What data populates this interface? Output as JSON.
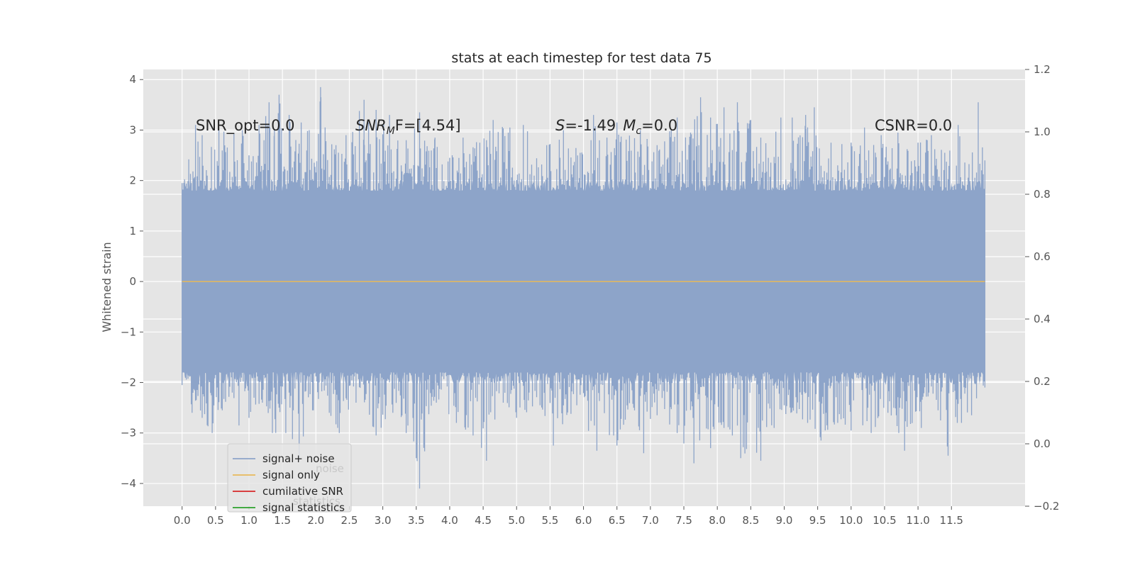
{
  "chart_data": {
    "type": "line",
    "title": "stats at each timestep for test data 75",
    "ylabel": "Whitened strain",
    "xlabel": "",
    "xlim": [
      -0.58,
      12.6
    ],
    "ylim": [
      -4.45,
      4.2
    ],
    "y2lim": [
      -0.2,
      1.2
    ],
    "grid": true,
    "legend_position": "lower-left",
    "x_ticks": [
      0.0,
      0.5,
      1.0,
      1.5,
      2.0,
      2.5,
      3.0,
      3.5,
      4.0,
      4.5,
      5.0,
      5.5,
      6.0,
      6.5,
      7.0,
      7.5,
      8.0,
      8.5,
      9.0,
      9.5,
      10.0,
      10.5,
      11.0,
      11.5
    ],
    "x_tick_labels": [
      "0.0",
      "0.5",
      "1.0",
      "1.5",
      "2.0",
      "2.5",
      "3.0",
      "3.5",
      "4.0",
      "4.5",
      "5.0",
      "5.5",
      "6.0",
      "6.5",
      "7.0",
      "7.5",
      "8.0",
      "8.5",
      "9.0",
      "9.5",
      "10.0",
      "10.5",
      "11.0",
      "11.5"
    ],
    "y_ticks": [
      -4,
      -3,
      -2,
      -1,
      0,
      1,
      2,
      3,
      4
    ],
    "y_tick_labels": [
      "−4",
      "−3",
      "−2",
      "−1",
      "0",
      "1",
      "2",
      "3",
      "4"
    ],
    "y2_ticks": [
      -0.2,
      0.0,
      0.2,
      0.4,
      0.6,
      0.8,
      1.0,
      1.2
    ],
    "y2_tick_labels": [
      "−0.2",
      "0.0",
      "0.2",
      "0.4",
      "0.6",
      "0.8",
      "1.0",
      "1.2"
    ],
    "series": [
      {
        "name": "signal+ noise",
        "color": "#8da4c9",
        "x_range": [
          0.0,
          12.0
        ],
        "envelope_max": [
          [
            0.0,
            1.95
          ],
          [
            0.2,
            3.1
          ],
          [
            0.3,
            2.9
          ],
          [
            0.55,
            3.0
          ],
          [
            0.9,
            3.0
          ],
          [
            1.0,
            2.5
          ],
          [
            1.15,
            3.1
          ],
          [
            1.3,
            3.55
          ],
          [
            1.38,
            3.0
          ],
          [
            1.45,
            3.7
          ],
          [
            1.6,
            3.3
          ],
          [
            1.78,
            3.15
          ],
          [
            1.9,
            3.0
          ],
          [
            2.07,
            3.85
          ],
          [
            2.3,
            2.7
          ],
          [
            2.45,
            2.9
          ],
          [
            2.72,
            3.6
          ],
          [
            2.9,
            3.4
          ],
          [
            3.1,
            3.3
          ],
          [
            3.35,
            2.8
          ],
          [
            3.55,
            3.35
          ],
          [
            3.78,
            2.85
          ],
          [
            4.0,
            2.45
          ],
          [
            4.2,
            2.85
          ],
          [
            4.45,
            2.75
          ],
          [
            4.65,
            3.2
          ],
          [
            4.9,
            3.05
          ],
          [
            5.1,
            3.1
          ],
          [
            5.45,
            2.7
          ],
          [
            5.7,
            3.0
          ],
          [
            5.95,
            2.55
          ],
          [
            6.15,
            3.3
          ],
          [
            6.35,
            2.85
          ],
          [
            6.5,
            3.15
          ],
          [
            6.85,
            3.0
          ],
          [
            7.1,
            2.7
          ],
          [
            7.4,
            3.25
          ],
          [
            7.6,
            2.95
          ],
          [
            7.75,
            3.65
          ],
          [
            7.9,
            3.25
          ],
          [
            8.1,
            3.45
          ],
          [
            8.3,
            3.55
          ],
          [
            8.5,
            3.2
          ],
          [
            8.65,
            2.85
          ],
          [
            8.95,
            3.25
          ],
          [
            9.12,
            3.25
          ],
          [
            9.32,
            3.3
          ],
          [
            9.45,
            3.45
          ],
          [
            9.7,
            2.75
          ],
          [
            10.0,
            2.75
          ],
          [
            10.2,
            3.05
          ],
          [
            10.45,
            2.9
          ],
          [
            10.7,
            2.95
          ],
          [
            11.0,
            2.75
          ],
          [
            11.2,
            2.9
          ],
          [
            11.4,
            2.55
          ],
          [
            11.6,
            3.1
          ],
          [
            11.9,
            3.55
          ],
          [
            12.0,
            2.4
          ]
        ],
        "envelope_min": [
          [
            0.0,
            -2.05
          ],
          [
            0.15,
            -2.6
          ],
          [
            0.3,
            -2.7
          ],
          [
            0.45,
            -3.0
          ],
          [
            0.6,
            -2.55
          ],
          [
            0.75,
            -2.2
          ],
          [
            0.85,
            -2.85
          ],
          [
            1.0,
            -2.7
          ],
          [
            1.2,
            -2.4
          ],
          [
            1.35,
            -3.0
          ],
          [
            1.55,
            -3.0
          ],
          [
            1.75,
            -3.55
          ],
          [
            1.95,
            -2.55
          ],
          [
            2.2,
            -2.6
          ],
          [
            2.35,
            -3.0
          ],
          [
            2.6,
            -2.4
          ],
          [
            2.9,
            -3.05
          ],
          [
            3.15,
            -2.6
          ],
          [
            3.35,
            -3.0
          ],
          [
            3.55,
            -4.1
          ],
          [
            3.8,
            -2.4
          ],
          [
            4.1,
            -2.8
          ],
          [
            4.35,
            -3.05
          ],
          [
            4.55,
            -3.55
          ],
          [
            4.8,
            -2.4
          ],
          [
            5.0,
            -2.7
          ],
          [
            5.35,
            -2.45
          ],
          [
            5.55,
            -3.25
          ],
          [
            5.9,
            -2.45
          ],
          [
            6.2,
            -3.35
          ],
          [
            6.5,
            -3.25
          ],
          [
            6.75,
            -2.5
          ],
          [
            6.9,
            -3.4
          ],
          [
            7.1,
            -2.65
          ],
          [
            7.4,
            -3.0
          ],
          [
            7.65,
            -3.6
          ],
          [
            7.9,
            -3.3
          ],
          [
            8.1,
            -2.9
          ],
          [
            8.35,
            -3.5
          ],
          [
            8.65,
            -3.55
          ],
          [
            8.85,
            -2.9
          ],
          [
            9.1,
            -2.6
          ],
          [
            9.35,
            -2.8
          ],
          [
            9.55,
            -3.15
          ],
          [
            9.8,
            -2.8
          ],
          [
            10.0,
            -2.95
          ],
          [
            10.3,
            -3.0
          ],
          [
            10.55,
            -2.6
          ],
          [
            10.8,
            -3.35
          ],
          [
            11.05,
            -2.9
          ],
          [
            11.3,
            -2.55
          ],
          [
            11.45,
            -3.45
          ],
          [
            11.65,
            -2.8
          ],
          [
            11.8,
            -2.65
          ],
          [
            12.0,
            -2.1
          ]
        ]
      },
      {
        "name": "signal only",
        "color": "#e8b95a",
        "x": [
          0.0,
          12.0
        ],
        "y": [
          0.0,
          0.0
        ]
      },
      {
        "name": "cumilative SNR",
        "color": "#d62728",
        "x": [],
        "y": []
      },
      {
        "name": "signal statistics",
        "color": "#2ca02c",
        "x": [],
        "y": []
      }
    ],
    "annotations": {
      "snr_opt": "SNR_opt=0.0",
      "snr_mf_base": "SNR",
      "snr_mf_sub": "M",
      "snr_mf_rest": "F=[4.54]",
      "s_label": "S",
      "s_value": "=-1.49",
      "mc_label": "M",
      "mc_sub": "c",
      "mc_value": "=0.0",
      "csnr": "CSNR=0.0"
    },
    "legend_ghost_texts": [
      "noise",
      "statistics"
    ]
  },
  "colors": {
    "axes_background": "#e5e5e5",
    "grid": "#ffffff",
    "text": "#262626",
    "tick_text": "#555555",
    "legend_background": "#e5e5e5",
    "legend_border": "#cccccc"
  }
}
